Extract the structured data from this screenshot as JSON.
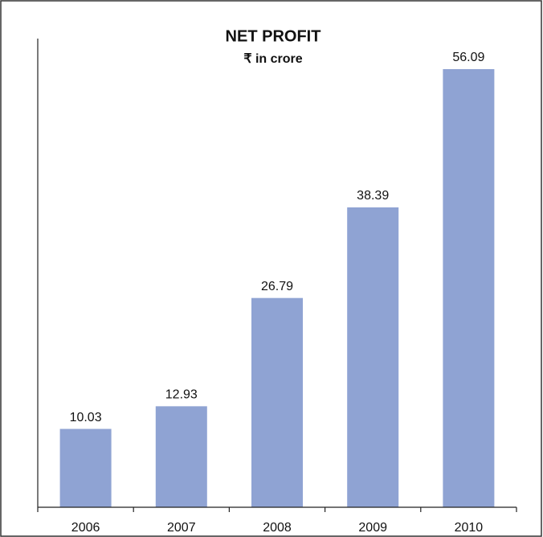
{
  "chart_data": {
    "type": "bar",
    "title": "NET PROFIT",
    "subtitle": "₹ in crore",
    "categories": [
      "2006",
      "2007",
      "2008",
      "2009",
      "2010"
    ],
    "values": [
      10.03,
      12.93,
      26.79,
      38.39,
      56.09
    ],
    "color": "#8fa3d3",
    "ylim": [
      0,
      60
    ]
  }
}
